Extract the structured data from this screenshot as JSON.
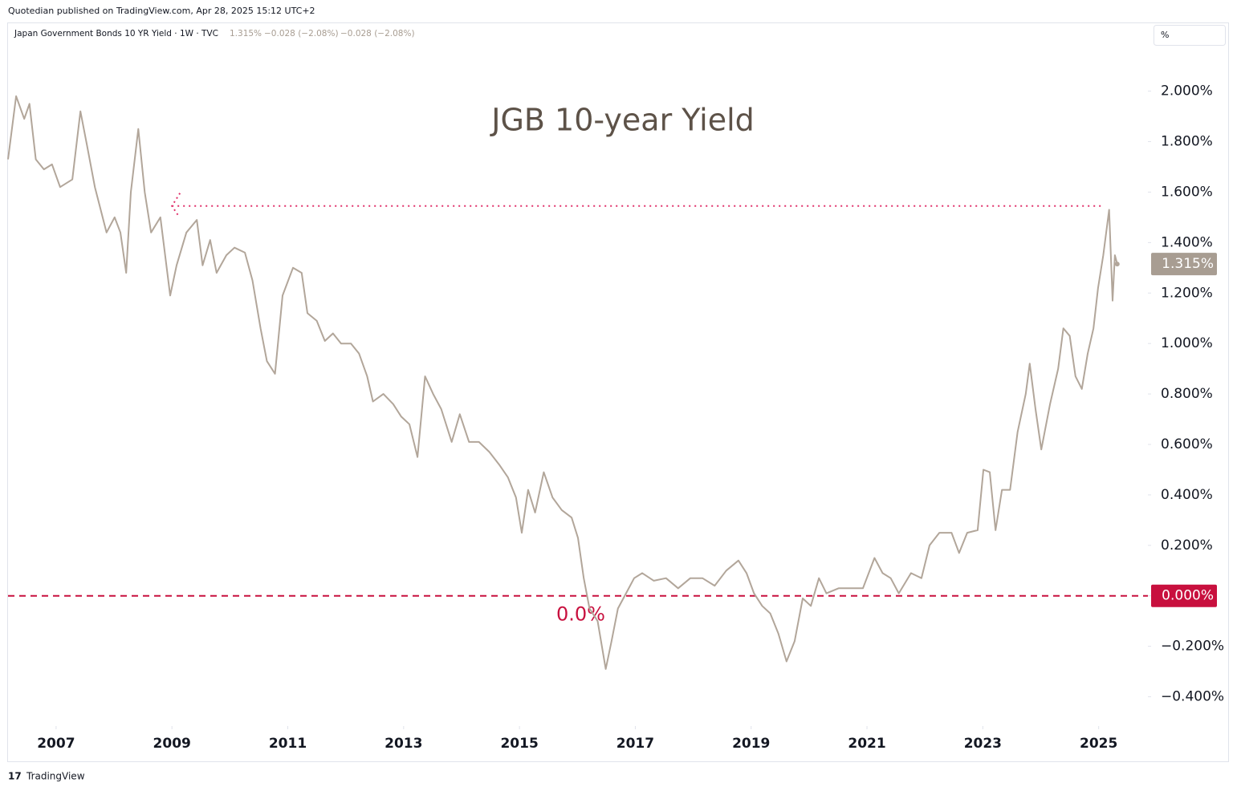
{
  "header": "Quotedian published on TradingView.com, Apr 28, 2025 15:12 UTC+2",
  "footer": "TradingView",
  "legend": {
    "symbol": "Japan Government Bonds 10 YR Yield · 1W · TVC",
    "last": "1.315%",
    "change": "−0.028 (−2.08%)",
    "change_2": "−0.028 (−2.08%)"
  },
  "unit": "%",
  "chart_data": {
    "type": "line",
    "title": "JGB 10-year Yield",
    "x": [
      2006.17,
      2006.31,
      2006.45,
      2006.54,
      2006.65,
      2006.79,
      2006.93,
      2007.07,
      2007.28,
      2007.42,
      2007.53,
      2007.67,
      2007.87,
      2008.01,
      2008.11,
      2008.21,
      2008.29,
      2008.42,
      2008.53,
      2008.64,
      2008.8,
      2008.97,
      2009.08,
      2009.25,
      2009.43,
      2009.53,
      2009.66,
      2009.77,
      2009.94,
      2010.08,
      2010.26,
      2010.39,
      2010.53,
      2010.64,
      2010.78,
      2010.91,
      2011.09,
      2011.24,
      2011.34,
      2011.5,
      2011.64,
      2011.78,
      2011.92,
      2012.09,
      2012.23,
      2012.37,
      2012.47,
      2012.65,
      2012.82,
      2012.96,
      2013.1,
      2013.24,
      2013.37,
      2013.51,
      2013.65,
      2013.83,
      2013.97,
      2014.13,
      2014.3,
      2014.48,
      2014.65,
      2014.8,
      2014.94,
      2015.04,
      2015.15,
      2015.27,
      2015.42,
      2015.57,
      2015.73,
      2015.9,
      2016.01,
      2016.11,
      2016.21,
      2016.35,
      2016.49,
      2016.59,
      2016.7,
      2016.84,
      2016.98,
      2017.12,
      2017.32,
      2017.53,
      2017.74,
      2017.95,
      2018.16,
      2018.37,
      2018.57,
      2018.78,
      2018.92,
      2019.05,
      2019.19,
      2019.33,
      2019.47,
      2019.61,
      2019.75,
      2019.89,
      2020.03,
      2020.17,
      2020.3,
      2020.51,
      2020.72,
      2020.93,
      2021.13,
      2021.27,
      2021.41,
      2021.55,
      2021.76,
      2021.94,
      2022.08,
      2022.25,
      2022.46,
      2022.59,
      2022.73,
      2022.91,
      2023.01,
      2023.12,
      2023.22,
      2023.33,
      2023.47,
      2023.6,
      2023.74,
      2023.81,
      2023.91,
      2024.01,
      2024.16,
      2024.3,
      2024.39,
      2024.5,
      2024.6,
      2024.71,
      2024.81,
      2024.91,
      2024.99,
      2025.08,
      2025.18,
      2025.24,
      2025.28,
      2025.32
    ],
    "series": [
      {
        "name": "Japan Government Bonds 10 YR Yield",
        "color": "#b2a69a",
        "values": [
          1.73,
          1.98,
          1.89,
          1.95,
          1.73,
          1.69,
          1.71,
          1.62,
          1.65,
          1.92,
          1.79,
          1.62,
          1.44,
          1.5,
          1.44,
          1.28,
          1.6,
          1.85,
          1.6,
          1.44,
          1.5,
          1.19,
          1.31,
          1.44,
          1.49,
          1.31,
          1.41,
          1.28,
          1.35,
          1.38,
          1.36,
          1.25,
          1.06,
          0.93,
          0.88,
          1.19,
          1.3,
          1.28,
          1.12,
          1.09,
          1.01,
          1.04,
          1.0,
          1.0,
          0.96,
          0.87,
          0.77,
          0.8,
          0.76,
          0.71,
          0.68,
          0.55,
          0.87,
          0.8,
          0.74,
          0.61,
          0.72,
          0.61,
          0.61,
          0.57,
          0.52,
          0.47,
          0.39,
          0.25,
          0.42,
          0.33,
          0.49,
          0.39,
          0.34,
          0.31,
          0.23,
          0.07,
          -0.05,
          -0.1,
          -0.29,
          -0.18,
          -0.05,
          0.01,
          0.07,
          0.09,
          0.06,
          0.07,
          0.03,
          0.07,
          0.07,
          0.04,
          0.1,
          0.14,
          0.09,
          0.01,
          -0.04,
          -0.07,
          -0.15,
          -0.26,
          -0.18,
          -0.01,
          -0.04,
          0.07,
          0.01,
          0.03,
          0.03,
          0.03,
          0.15,
          0.09,
          0.07,
          0.01,
          0.09,
          0.07,
          0.2,
          0.25,
          0.25,
          0.17,
          0.25,
          0.26,
          0.5,
          0.49,
          0.26,
          0.42,
          0.42,
          0.65,
          0.8,
          0.92,
          0.74,
          0.58,
          0.76,
          0.9,
          1.06,
          1.03,
          0.87,
          0.82,
          0.96,
          1.06,
          1.22,
          1.35,
          1.53,
          1.17,
          1.35,
          1.315
        ]
      }
    ],
    "xlim": [
      2006.17,
      2025.85
    ],
    "xticks": [
      2007,
      2009,
      2011,
      2013,
      2015,
      2017,
      2019,
      2021,
      2023,
      2025
    ],
    "ylim": [
      -0.5,
      2.25
    ],
    "yticks": [
      {
        "value": -0.4,
        "label": "−0.400%"
      },
      {
        "value": -0.2,
        "label": "−0.200%"
      },
      {
        "value": 0,
        "label": "0.000%"
      },
      {
        "value": 0.2,
        "label": "0.200%"
      },
      {
        "value": 0.4,
        "label": "0.400%"
      },
      {
        "value": 0.6,
        "label": "0.600%"
      },
      {
        "value": 0.8,
        "label": "0.800%"
      },
      {
        "value": 1,
        "label": "1.000%"
      },
      {
        "value": 1.2,
        "label": "1.200%"
      },
      {
        "value": 1.4,
        "label": "1.400%"
      },
      {
        "value": 1.6,
        "label": "1.600%"
      },
      {
        "value": 1.8,
        "label": "1.800%"
      },
      {
        "value": 2,
        "label": "2.000%"
      }
    ],
    "price_label": {
      "value": 1.315,
      "label": "1.315%",
      "color": "#a89d92"
    },
    "level_lines": [
      {
        "value": 1.545,
        "from": 2009.0,
        "to": 2025.1,
        "style": "dotted",
        "color": "#e0306a"
      },
      {
        "value": 0,
        "style": "dashed",
        "color": "#c8103e",
        "label": "0.000%",
        "annotation": "0.0%"
      }
    ],
    "grid": false
  }
}
